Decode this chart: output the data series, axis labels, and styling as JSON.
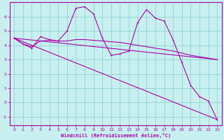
{
  "xlabel": "Windchill (Refroidissement éolien,°C)",
  "bg_color": "#c8f0f0",
  "line_color": "#aa00aa",
  "grid_color": "#88cccc",
  "xlim": [
    -0.5,
    23.5
  ],
  "ylim": [
    -1.6,
    7.0
  ],
  "xticks": [
    0,
    1,
    2,
    3,
    4,
    5,
    6,
    7,
    8,
    9,
    10,
    11,
    12,
    13,
    14,
    15,
    16,
    17,
    18,
    19,
    20,
    21,
    22,
    23
  ],
  "yticks": [
    -1,
    0,
    1,
    2,
    3,
    4,
    5,
    6
  ],
  "line1_x": [
    0,
    1,
    2,
    3,
    4,
    5,
    6,
    7,
    8,
    9,
    10,
    11,
    12,
    13,
    14,
    15,
    16,
    17,
    18,
    19,
    20,
    21,
    22,
    23
  ],
  "line1_y": [
    4.5,
    4.1,
    3.8,
    4.6,
    4.4,
    4.3,
    5.0,
    6.6,
    6.7,
    6.2,
    4.5,
    3.3,
    3.4,
    3.6,
    5.6,
    6.5,
    5.9,
    5.7,
    4.4,
    2.8,
    1.2,
    0.4,
    0.1,
    -1.2
  ],
  "line2_x": [
    0,
    1,
    2,
    3,
    4,
    5,
    6,
    7,
    8,
    9,
    10,
    11,
    12,
    13,
    14,
    15,
    16,
    17,
    18,
    19,
    20,
    21,
    22,
    23
  ],
  "line2_y": [
    4.5,
    4.1,
    3.9,
    4.3,
    4.35,
    4.3,
    4.3,
    4.4,
    4.4,
    4.35,
    4.3,
    4.25,
    4.2,
    4.1,
    4.0,
    3.9,
    3.8,
    3.7,
    3.6,
    3.45,
    3.3,
    3.2,
    3.1,
    3.0
  ],
  "line3_x": [
    0,
    23
  ],
  "line3_y": [
    4.5,
    -1.2
  ],
  "line4_x": [
    0,
    23
  ],
  "line4_y": [
    4.5,
    3.0
  ]
}
